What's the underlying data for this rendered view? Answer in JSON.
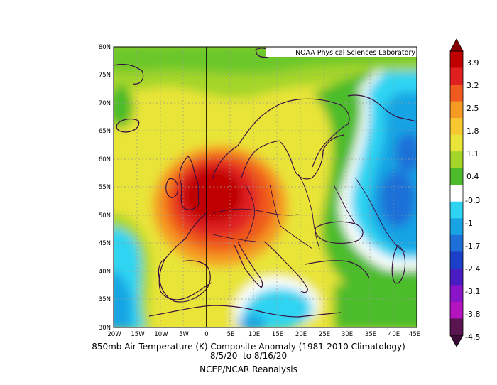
{
  "map": {
    "credit": "NOAA Physical Sciences Laboratory",
    "lat_labels": [
      "80N",
      "75N",
      "70N",
      "65N",
      "60N",
      "55N",
      "50N",
      "45N",
      "40N",
      "35N",
      "30N"
    ],
    "lon_labels": [
      "20W",
      "15W",
      "10W",
      "5W",
      "0",
      "5E",
      "10E",
      "15E",
      "20E",
      "25E",
      "30E",
      "35E",
      "40E",
      "45E"
    ],
    "extent": {
      "lon": [
        -20,
        45
      ],
      "lat": [
        30,
        80
      ]
    }
  },
  "colorbar": {
    "labels": [
      "3.9",
      "3.2",
      "2.5",
      "1.8",
      "1.1",
      "0.4",
      "-0.3",
      "-1",
      "-1.7",
      "-2.4",
      "-3.1",
      "-3.8",
      "-4.5"
    ],
    "colors": [
      "#c00000",
      "#e02020",
      "#f05a1e",
      "#f59a22",
      "#f8c830",
      "#e8e438",
      "#a4d62a",
      "#4cbc2c",
      "#ffffff",
      "#2ed4f2",
      "#18a4e4",
      "#1e70d8",
      "#1c40c8",
      "#4a1cc4",
      "#8a14c8",
      "#b414c0",
      "#5a1450"
    ]
  },
  "captions": {
    "line1": "850mb Air Temperature (K) Composite Anomaly (1981-2010 Climatology)",
    "line2": "8/5/20  to 8/16/20",
    "line3": "NCEP/NCAR Reanalysis"
  }
}
